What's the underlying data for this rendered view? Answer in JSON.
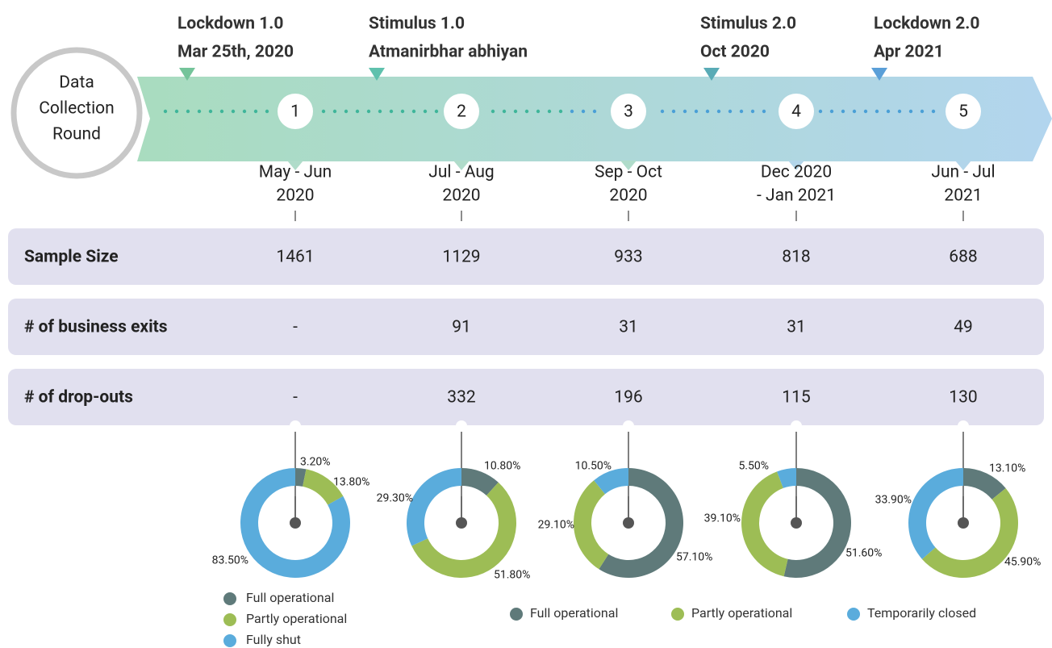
{
  "header": {
    "circle_label": [
      "Data",
      "Collection",
      "Round"
    ]
  },
  "events": [
    {
      "title": "Lockdown 1.0",
      "date": "Mar 25th, 2020",
      "color": "#74c49a"
    },
    {
      "title": "Stimulus 1.0",
      "date": "Atmanirbhar abhiyan",
      "color": "#5fc1ad"
    },
    {
      "title": "Stimulus 2.0",
      "date": "Oct 2020",
      "color": "#59abb6"
    },
    {
      "title": "Lockdown 2.0",
      "date": "Apr 2021",
      "color": "#5a9fd8"
    }
  ],
  "rounds": [
    {
      "number": "1",
      "period": [
        "May - Jun",
        "2020"
      ]
    },
    {
      "number": "2",
      "period": [
        "Jul - Aug",
        "2020"
      ]
    },
    {
      "number": "3",
      "period": [
        "Sep - Oct",
        "2020"
      ]
    },
    {
      "number": "4",
      "period": [
        "Dec 2020",
        "- Jan 2021"
      ]
    },
    {
      "number": "5",
      "period": [
        "Jun - Jul",
        "2021"
      ]
    }
  ],
  "table": {
    "rows": [
      {
        "label": "Sample Size",
        "values": [
          "1461",
          "1129",
          "933",
          "818",
          "688"
        ]
      },
      {
        "label": "# of business exits",
        "values": [
          "-",
          "91",
          "31",
          "31",
          "49"
        ]
      },
      {
        "label": "# of drop-outs",
        "values": [
          "-",
          "332",
          "196",
          "115",
          "130"
        ]
      }
    ]
  },
  "colors": [
    "#5f7a7a",
    "#9dbd55",
    "#5aacdc"
  ],
  "legend_left": [
    "Full operational",
    "Partly operational",
    "Fully shut"
  ],
  "legend_bottom": [
    "Full operational",
    "Partly operational",
    "Temporarily closed"
  ],
  "chart_data": [
    {
      "type": "donut",
      "values": [
        3.2,
        13.8,
        83.5
      ],
      "value_labels": [
        "3.20%",
        "13.80%",
        "83.50%"
      ]
    },
    {
      "type": "donut",
      "values": [
        10.8,
        51.8,
        29.3
      ],
      "value_labels": [
        "10.80%",
        "51.80%",
        "29.30%"
      ]
    },
    {
      "type": "donut",
      "values": [
        57.1,
        29.1,
        10.5
      ],
      "value_labels": [
        "57.10%",
        "29.10%",
        "10.50%"
      ]
    },
    {
      "type": "donut",
      "values": [
        51.6,
        39.1,
        5.5
      ],
      "value_labels": [
        "51.60%",
        "39.10%",
        "5.50%"
      ]
    },
    {
      "type": "donut",
      "values": [
        13.1,
        45.9,
        33.9
      ],
      "value_labels": [
        "13.10%",
        "45.90%",
        "33.90%"
      ]
    }
  ]
}
